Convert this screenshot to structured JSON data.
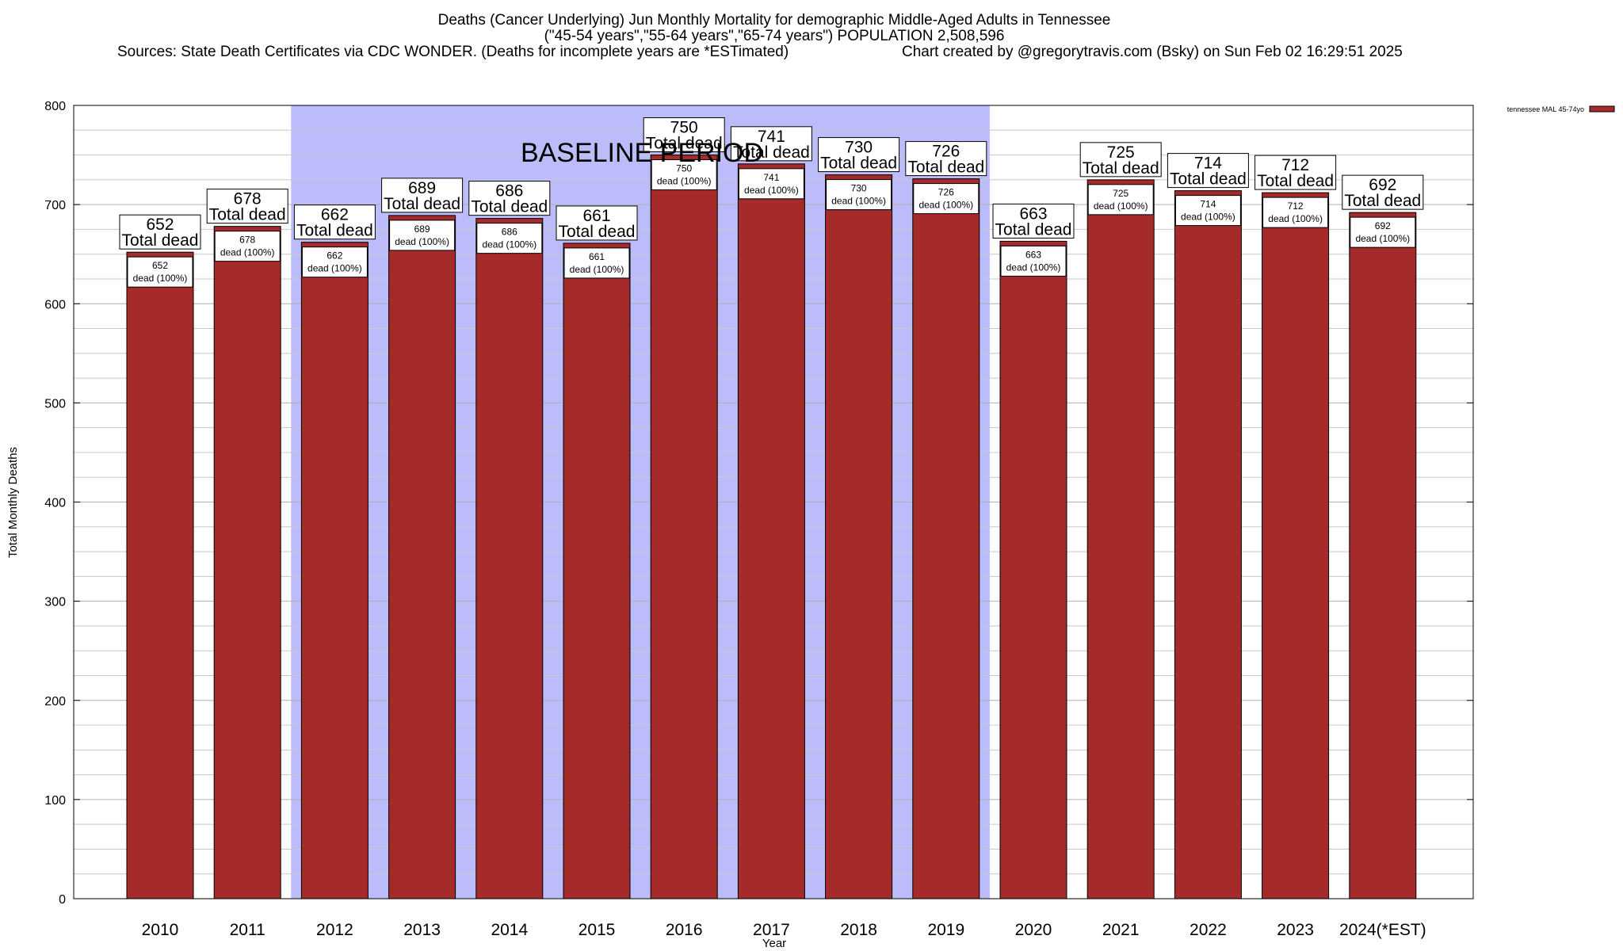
{
  "chart_data": {
    "type": "bar",
    "title": "Deaths (Cancer Underlying) Jun Monthly Mortality for demographic Middle-Aged Adults in Tennessee",
    "subtitle": "(\"45-54 years\",\"55-64 years\",\"65-74 years\") POPULATION 2,508,596",
    "sources": "Sources: State Death Certificates via CDC WONDER. (Deaths for incomplete years are *ESTimated)",
    "credit": "Chart created by @gregorytravis.com (Bsky) on Sun Feb 02 16:29:51 2025",
    "xlabel": "Year",
    "ylabel": "Total Monthly Deaths",
    "ylim": [
      0,
      800
    ],
    "yticks": [
      0,
      100,
      200,
      300,
      400,
      500,
      600,
      700,
      800
    ],
    "categories": [
      "2010",
      "2011",
      "2012",
      "2013",
      "2014",
      "2015",
      "2016",
      "2017",
      "2018",
      "2019",
      "2020",
      "2021",
      "2022",
      "2023",
      "2024(*EST)"
    ],
    "series": [
      {
        "name": "tennessee MAL 45-74yo",
        "color": "#a52a2a",
        "values": [
          652,
          678,
          662,
          689,
          686,
          661,
          750,
          741,
          730,
          726,
          663,
          725,
          714,
          712,
          692
        ]
      }
    ],
    "total_label": "Total dead",
    "inner_label_suffix": "dead (100%)",
    "baseline": {
      "label": "BASELINE PERIOD",
      "start": "2012",
      "end": "2019",
      "color": "#bcbcfa"
    },
    "grid": true,
    "legend_position": "top-right"
  }
}
